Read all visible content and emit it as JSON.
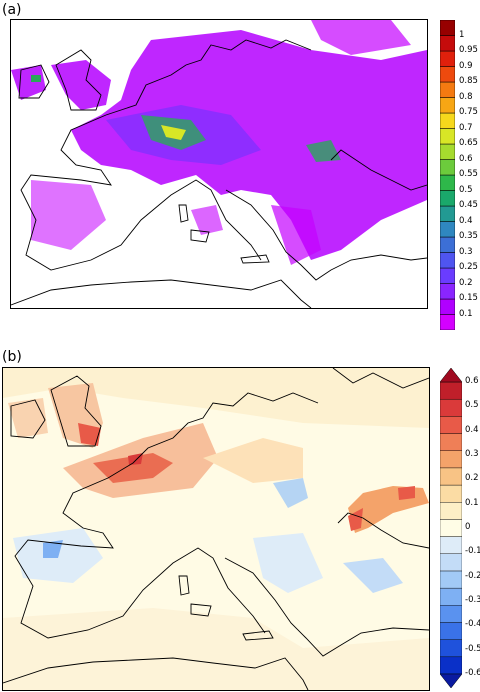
{
  "panel_a": {
    "label": "(a)",
    "colorbar": {
      "colors": [
        "#d400ff",
        "#b000ff",
        "#8a25ff",
        "#6a3cff",
        "#4f55f0",
        "#3c6fd6",
        "#2f87c0",
        "#229a93",
        "#1aa86b",
        "#2eb84a",
        "#6ccb3c",
        "#a6db2e",
        "#d8e626",
        "#f6d81c",
        "#f7a614",
        "#f47a11",
        "#ee4a0e",
        "#e0200c",
        "#c50b0b",
        "#970000"
      ],
      "ticks": [
        "0.1",
        "0.15",
        "0.2",
        "0.25",
        "0.3",
        "0.35",
        "0.4",
        "0.45",
        "0.5",
        "0.55",
        "0.6",
        "0.65",
        "0.7",
        "0.75",
        "0.8",
        "0.85",
        "0.9",
        "0.95",
        "1"
      ]
    }
  },
  "panel_b": {
    "label": "(b)",
    "colorbar": {
      "colors": [
        "#0a30c8",
        "#1f52dc",
        "#3a72e8",
        "#5a92ef",
        "#7eb0f3",
        "#a2caf6",
        "#c3dcf7",
        "#deecf8",
        "#fffde6",
        "#fdefc6",
        "#fbdca4",
        "#f8c385",
        "#f4a36a",
        "#ef7f57",
        "#e85a48",
        "#da3a3a",
        "#c01f2a"
      ],
      "low_triangle": "#0a1aa0",
      "high_triangle": "#a00a20",
      "ticks": [
        "-0.6",
        "-0.5",
        "-0.4",
        "-0.3",
        "-0.2",
        "-0.1",
        "0",
        "0.1",
        "0.2",
        "0.3",
        "0.4",
        "0.5",
        "0.6"
      ]
    }
  }
}
